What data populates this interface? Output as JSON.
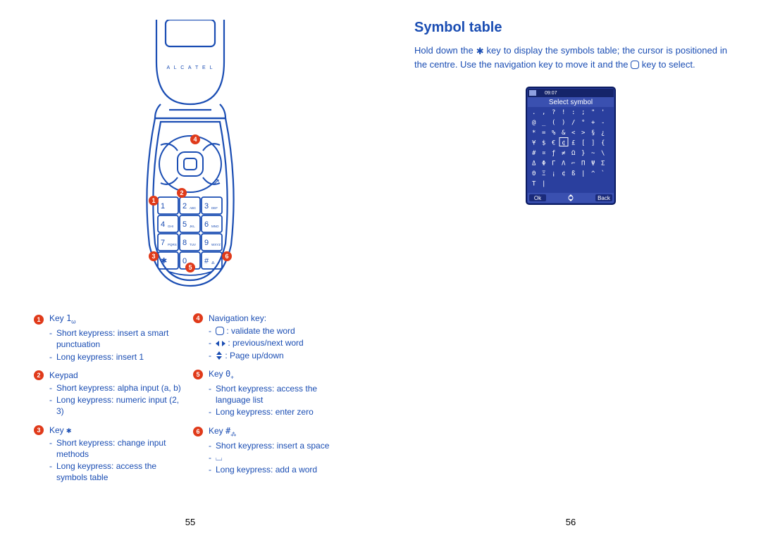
{
  "colors": {
    "text": "#1a4db3",
    "accent_red": "#e03a1a",
    "screen_bg": "#2a3f9e",
    "screen_header": "#3a50b0",
    "white": "#ffffff",
    "black": "#000000"
  },
  "left_page": {
    "page_number": "55",
    "brand": "A L C A T E L",
    "keypad": {
      "keys": [
        [
          "1",
          "2 ABC",
          "3 DEF"
        ],
        [
          "4 GHI",
          "5 JKL",
          "6 MNO"
        ],
        [
          "7 PQRS",
          "8 TUV",
          "9 WXYZ"
        ],
        [
          "✱",
          "0 +",
          "# ⁂"
        ]
      ]
    },
    "callouts": [
      "1",
      "2",
      "3",
      "4",
      "5",
      "6"
    ],
    "legend": [
      {
        "n": "1",
        "title_prefix": "Key ",
        "glyph": "1",
        "glyph_sub": "ω",
        "bullets": [
          "Short keypress: insert a smart punctuation",
          "Long keypress: insert 1"
        ]
      },
      {
        "n": "2",
        "title": "Keypad",
        "bullets": [
          "Short keypress: alpha input (a, b)",
          "Long keypress: numeric input (2, 3)"
        ]
      },
      {
        "n": "3",
        "title_prefix": "Key ",
        "glyph": "✱",
        "bullets": [
          "Short keypress: change input methods",
          "Long keypress: access the symbols table"
        ]
      },
      {
        "n": "4",
        "title": "Navigation key:",
        "nav_items": [
          {
            "icon": "ok",
            "text": ": validate the word"
          },
          {
            "icon": "lr",
            "text": ": previous/next word"
          },
          {
            "icon": "ud",
            "text": ": Page up/down"
          }
        ]
      },
      {
        "n": "5",
        "title_prefix": "Key ",
        "glyph": "0",
        "glyph_sub": "+",
        "bullets": [
          "Short keypress: access the language list",
          "Long keypress: enter zero"
        ]
      },
      {
        "n": "6",
        "title_prefix": "Key ",
        "glyph": "#",
        "glyph_sub": "⁂",
        "bullets": [
          "Short keypress: insert a space",
          "⌴",
          "Long keypress: add a word"
        ]
      }
    ]
  },
  "right_page": {
    "page_number": "56",
    "title": "Symbol table",
    "paragraph_parts": [
      "Hold down the ",
      "✱",
      " key to display the symbols table; the cursor is positioned in the centre. Use the navigation key to move it and the ",
      "○",
      " key to select."
    ],
    "screen": {
      "status_time": "09:07",
      "header": "Select symbol",
      "rows": [
        [
          ".",
          ",",
          "?",
          "!",
          ":",
          ";",
          "\"",
          "'"
        ],
        [
          "@",
          "_",
          "(",
          ")",
          "/",
          "°",
          "+",
          "-"
        ],
        [
          "*",
          "=",
          "%",
          "&",
          "<",
          ">",
          "§",
          "¿"
        ],
        [
          "¥",
          "$",
          "€",
          "¢",
          "£",
          "[",
          "]",
          "{"
        ],
        [
          "#",
          "¤",
          "ƒ",
          "≠",
          "Ω",
          "}",
          "~",
          "\\"
        ],
        [
          "Δ",
          "Φ",
          "Γ",
          "Λ",
          "⌐",
          "Π",
          "Ψ",
          "Σ"
        ],
        [
          "Θ",
          "Ξ",
          "¡",
          "¢",
          "ß",
          "|",
          "^",
          "`"
        ],
        [
          "T",
          "|",
          " ",
          " ",
          " ",
          " ",
          " ",
          " "
        ]
      ],
      "softkey_left": "Ok",
      "softkey_right": "Back"
    }
  }
}
